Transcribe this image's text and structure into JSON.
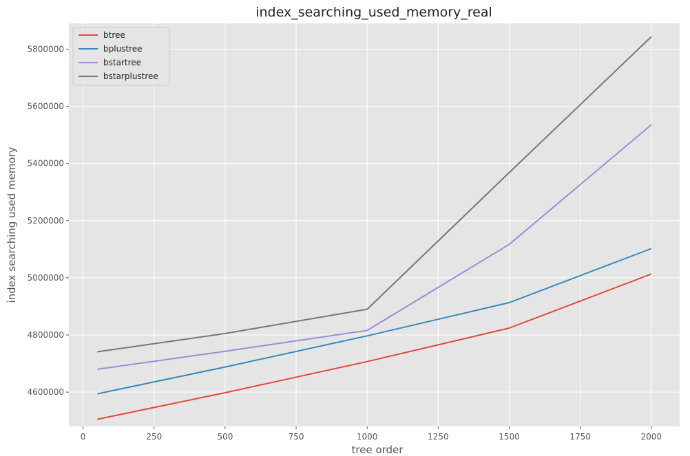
{
  "chart_data": {
    "type": "line",
    "title": "index_searching_used_memory_real",
    "xlabel": "tree order",
    "ylabel": "index searching used memory",
    "x": [
      50,
      500,
      1000,
      1500,
      2000
    ],
    "series": [
      {
        "name": "btree",
        "color": "#E24A33",
        "values": [
          4505000,
          4598000,
          4707000,
          4824000,
          5013000
        ]
      },
      {
        "name": "bplustree",
        "color": "#348ABD",
        "values": [
          4594000,
          4688000,
          4797000,
          4913000,
          5102000
        ]
      },
      {
        "name": "bstartree",
        "color": "#988ED5",
        "values": [
          4680000,
          4743000,
          4816000,
          5117000,
          5535000
        ]
      },
      {
        "name": "bstarplustree",
        "color": "#777777",
        "values": [
          4741000,
          4805000,
          4890000,
          5368000,
          5843000
        ]
      }
    ],
    "xlim": [
      -50,
      2100
    ],
    "ylim": [
      4480000,
      5890000
    ],
    "xticks": [
      0,
      250,
      500,
      750,
      1000,
      1250,
      1500,
      1750,
      2000
    ],
    "yticks": [
      4600000,
      4800000,
      5000000,
      5200000,
      5400000,
      5600000,
      5800000
    ],
    "grid": true,
    "legend_position": "top-left",
    "background": "#E5E5E5"
  }
}
